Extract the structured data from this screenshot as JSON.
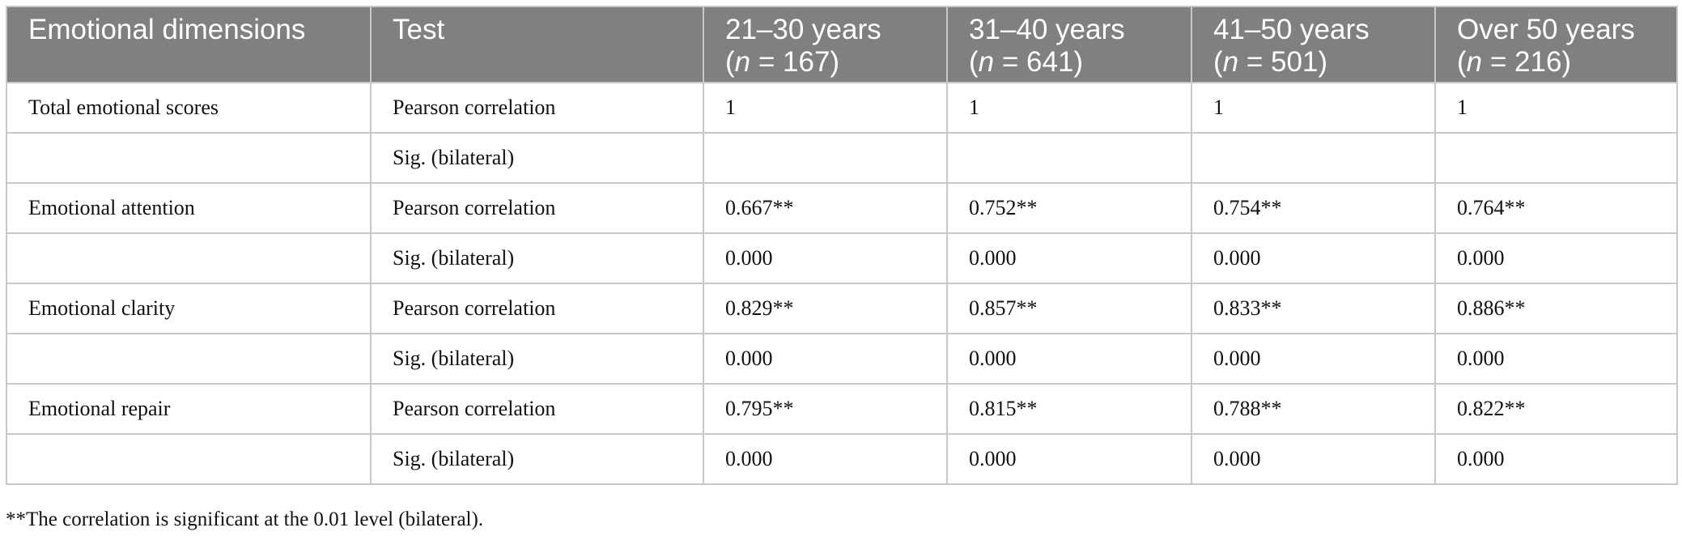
{
  "table": {
    "header": [
      {
        "lines": [
          [
            "Emotional dimensions"
          ]
        ]
      },
      {
        "lines": [
          [
            "Test"
          ]
        ]
      },
      {
        "lines": [
          [
            "21–30 years"
          ],
          [
            "(",
            "n",
            " = 167)"
          ]
        ]
      },
      {
        "lines": [
          [
            "31–40 years"
          ],
          [
            "(",
            "n",
            " = 641)"
          ]
        ]
      },
      {
        "lines": [
          [
            "41–50 years"
          ],
          [
            "(",
            "n",
            " = 501)"
          ]
        ]
      },
      {
        "lines": [
          [
            "Over 50 years"
          ],
          [
            "(",
            "n",
            " = 216)"
          ]
        ]
      }
    ],
    "rows": [
      [
        "Total emotional scores",
        "Pearson correlation",
        "1",
        "1",
        "1",
        "1"
      ],
      [
        null,
        "Sig. (bilateral)",
        null,
        null,
        null,
        null
      ],
      [
        "Emotional attention",
        "Pearson correlation",
        "0.667**",
        "0.752**",
        "0.754**",
        "0.764**"
      ],
      [
        null,
        "Sig. (bilateral)",
        "0.000",
        "0.000",
        "0.000",
        "0.000"
      ],
      [
        "Emotional clarity",
        "Pearson correlation",
        "0.829**",
        "0.857**",
        "0.833**",
        "0.886**"
      ],
      [
        null,
        "Sig. (bilateral)",
        "0.000",
        "0.000",
        "0.000",
        "0.000"
      ],
      [
        "Emotional repair",
        "Pearson correlation",
        "0.795**",
        "0.815**",
        "0.788**",
        "0.822**"
      ],
      [
        null,
        "Sig. (bilateral)",
        "0.000",
        "0.000",
        "0.000",
        "0.000"
      ]
    ]
  },
  "footnote": "**The correlation is significant at the 0.01 level (bilateral)."
}
